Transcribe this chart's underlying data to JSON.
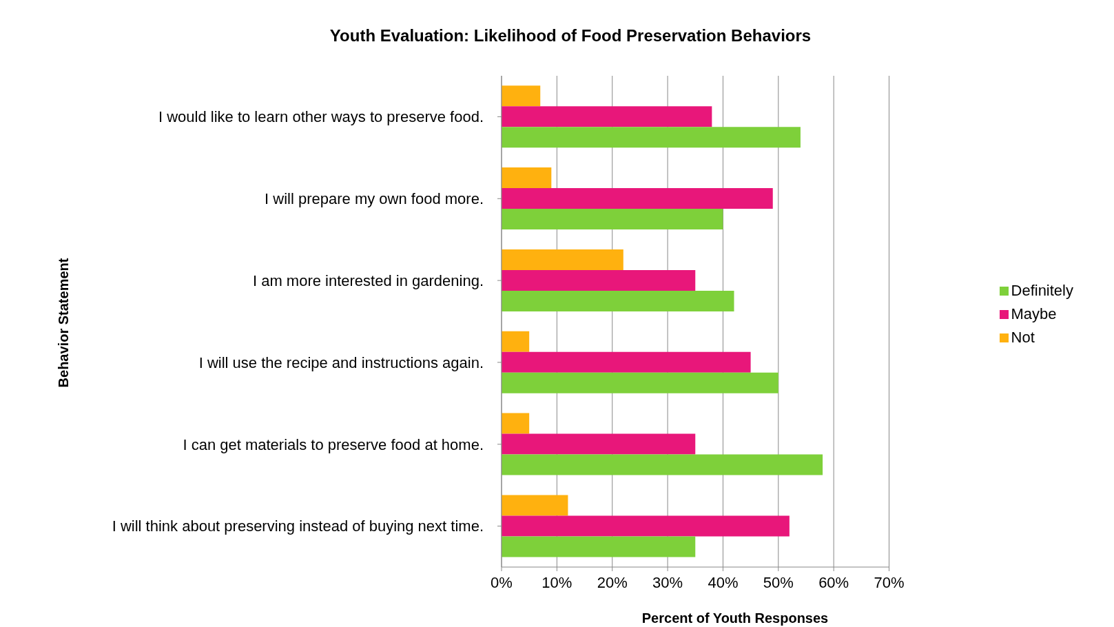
{
  "chart_data": {
    "type": "bar",
    "orientation": "horizontal",
    "title": "Youth Evaluation: Likelihood of Food Preservation Behaviors",
    "xlabel": "Percent of Youth Responses",
    "ylabel": "Behavior Statement",
    "categories": [
      "I would like to learn other ways to preserve food.",
      "I will prepare my own food more.",
      "I am more interested in gardening.",
      "I will use the recipe and instructions again.",
      "I can get materials to preserve food at home.",
      "I will think about preserving instead of buying next time."
    ],
    "series": [
      {
        "name": "Not",
        "color": "#ffb10f",
        "values": [
          7,
          9,
          22,
          5,
          5,
          12
        ]
      },
      {
        "name": "Maybe",
        "color": "#e8177a",
        "values": [
          38,
          49,
          35,
          45,
          35,
          52
        ]
      },
      {
        "name": "Definitely",
        "color": "#7ed03a",
        "values": [
          54,
          40,
          42,
          50,
          58,
          35
        ]
      }
    ],
    "xlim": [
      0,
      70
    ],
    "xticks": [
      {
        "value": 0,
        "label": "0%"
      },
      {
        "value": 10,
        "label": "10%"
      },
      {
        "value": 20,
        "label": "20%"
      },
      {
        "value": 30,
        "label": "30%"
      },
      {
        "value": 40,
        "label": "40%"
      },
      {
        "value": 50,
        "label": "50%"
      },
      {
        "value": 60,
        "label": "60%"
      },
      {
        "value": 70,
        "label": "70%"
      }
    ],
    "grid": "x",
    "legend": "right"
  }
}
